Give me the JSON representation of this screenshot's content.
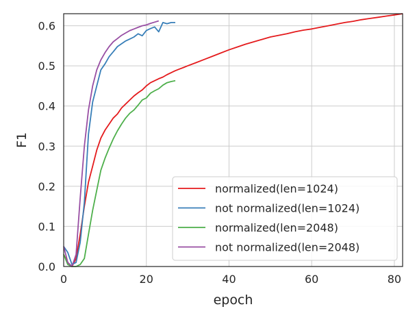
{
  "chart_data": {
    "type": "line",
    "xlabel": "epoch",
    "ylabel": "F1",
    "xlim": [
      0,
      82
    ],
    "ylim": [
      0,
      0.63
    ],
    "xticks": [
      0,
      20,
      40,
      60,
      80
    ],
    "yticks": [
      0.0,
      0.1,
      0.2,
      0.3,
      0.4,
      0.5,
      0.6
    ],
    "xtick_labels": [
      "0",
      "20",
      "40",
      "60",
      "80"
    ],
    "ytick_labels": [
      "0.0",
      "0.1",
      "0.2",
      "0.3",
      "0.4",
      "0.5",
      "0.6"
    ],
    "grid": true,
    "legend_position": "lower-right",
    "series": [
      {
        "name": "normalized(len=1024)",
        "color": "#e41a1c",
        "x": [
          0,
          1,
          2,
          3,
          4,
          5,
          6,
          7,
          8,
          9,
          10,
          11,
          12,
          13,
          14,
          15,
          16,
          17,
          18,
          19,
          20,
          21,
          22,
          23,
          24,
          25,
          26,
          27,
          28,
          29,
          30,
          32,
          34,
          36,
          38,
          40,
          42,
          44,
          46,
          48,
          50,
          52,
          54,
          56,
          58,
          60,
          62,
          64,
          66,
          68,
          70,
          72,
          74,
          76,
          78,
          80,
          82
        ],
        "y": [
          0.03,
          0.01,
          0.0,
          0.02,
          0.08,
          0.15,
          0.21,
          0.25,
          0.29,
          0.32,
          0.34,
          0.355,
          0.37,
          0.38,
          0.395,
          0.405,
          0.415,
          0.425,
          0.433,
          0.44,
          0.45,
          0.458,
          0.463,
          0.468,
          0.472,
          0.478,
          0.483,
          0.488,
          0.492,
          0.496,
          0.5,
          0.508,
          0.516,
          0.524,
          0.532,
          0.54,
          0.547,
          0.554,
          0.56,
          0.566,
          0.572,
          0.576,
          0.58,
          0.585,
          0.589,
          0.592,
          0.596,
          0.6,
          0.604,
          0.608,
          0.611,
          0.615,
          0.618,
          0.621,
          0.624,
          0.627,
          0.63
        ]
      },
      {
        "name": "not normalized(len=1024)",
        "color": "#377eb8",
        "x": [
          0,
          1,
          2,
          3,
          4,
          5,
          6,
          7,
          8,
          9,
          10,
          11,
          12,
          13,
          14,
          15,
          16,
          17,
          18,
          19,
          20,
          21,
          22,
          23,
          24,
          25,
          26,
          27
        ],
        "y": [
          0.05,
          0.035,
          0.005,
          0.01,
          0.06,
          0.16,
          0.33,
          0.41,
          0.45,
          0.49,
          0.505,
          0.523,
          0.535,
          0.548,
          0.555,
          0.562,
          0.567,
          0.572,
          0.58,
          0.575,
          0.588,
          0.593,
          0.597,
          0.585,
          0.608,
          0.605,
          0.608,
          0.608
        ]
      },
      {
        "name": "normalized(len=2048)",
        "color": "#4daf4a",
        "x": [
          0,
          1,
          2,
          3,
          4,
          5,
          6,
          7,
          8,
          9,
          10,
          11,
          12,
          13,
          14,
          15,
          16,
          17,
          18,
          19,
          20,
          21,
          22,
          23,
          24,
          25,
          26,
          27
        ],
        "y": [
          0.03,
          0.005,
          0.0,
          0.0,
          0.005,
          0.02,
          0.08,
          0.14,
          0.19,
          0.24,
          0.27,
          0.295,
          0.318,
          0.338,
          0.355,
          0.37,
          0.382,
          0.39,
          0.402,
          0.415,
          0.42,
          0.432,
          0.438,
          0.443,
          0.452,
          0.458,
          0.461,
          0.463
        ]
      },
      {
        "name": "not normalized(len=2048)",
        "color": "#984ea3",
        "x": [
          0,
          1,
          2,
          3,
          4,
          5,
          6,
          7,
          8,
          9,
          10,
          11,
          12,
          13,
          14,
          15,
          16,
          17,
          18,
          19,
          20,
          21,
          22,
          23
        ],
        "y": [
          0.05,
          0.01,
          0.0,
          0.03,
          0.17,
          0.3,
          0.39,
          0.45,
          0.49,
          0.515,
          0.533,
          0.548,
          0.56,
          0.568,
          0.576,
          0.582,
          0.588,
          0.592,
          0.596,
          0.6,
          0.602,
          0.606,
          0.609,
          0.612
        ]
      }
    ]
  }
}
